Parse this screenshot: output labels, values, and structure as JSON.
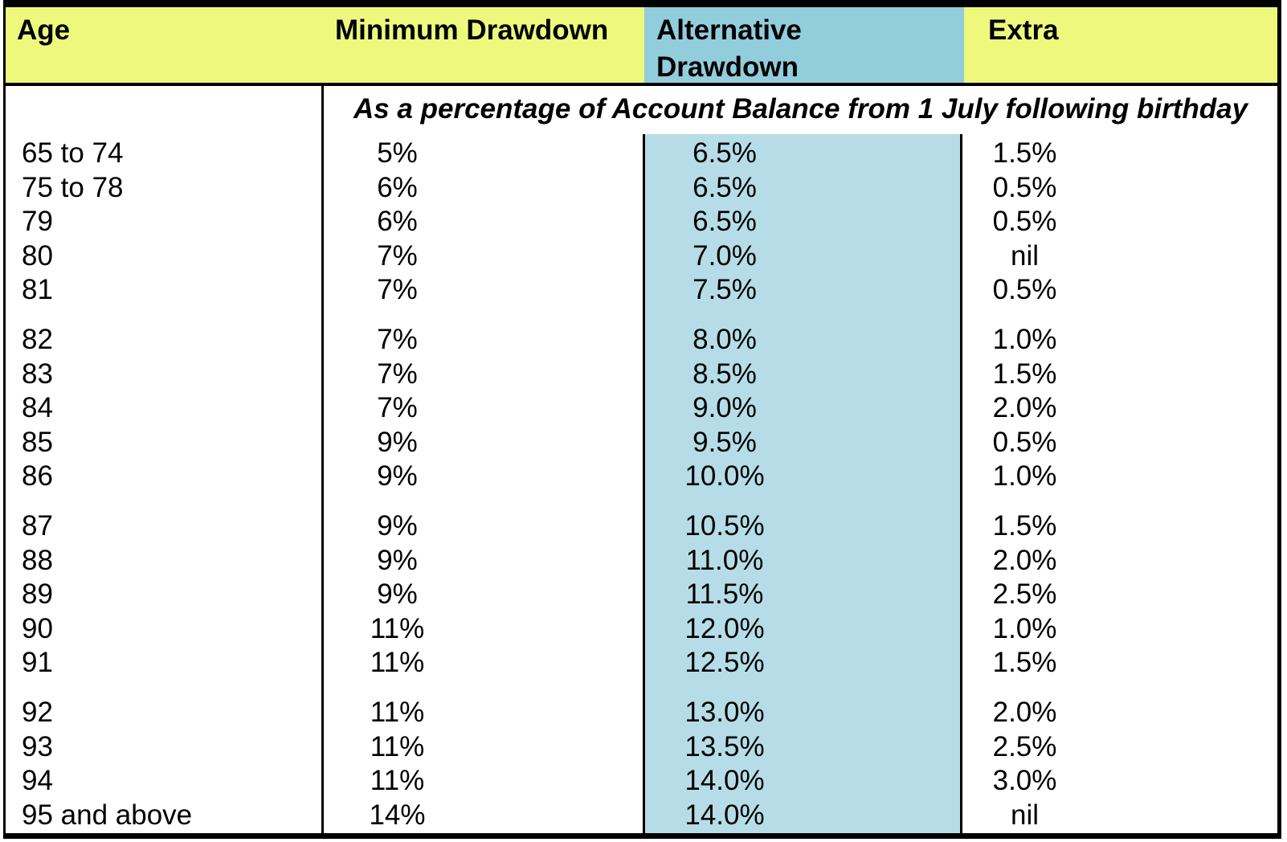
{
  "colors": {
    "header-yellow": "#EEF87D",
    "header-blue": "#92CDDC",
    "column-blue": "#B6DDE7",
    "border": "#000000",
    "text": "#000000"
  },
  "table": {
    "columns": [
      "Age",
      "Minimum Drawdown",
      "Alternative Drawdown",
      "Extra"
    ],
    "subheader": "As a percentage of Account Balance from 1 July following birthday",
    "rows": [
      {
        "age": "65 to 74",
        "min": "5%",
        "alt": "6.5%",
        "extra": "1.5%",
        "gap_before": false
      },
      {
        "age": "75 to 78",
        "min": "6%",
        "alt": "6.5%",
        "extra": "0.5%",
        "gap_before": false
      },
      {
        "age": "79",
        "min": "6%",
        "alt": "6.5%",
        "extra": "0.5%",
        "gap_before": false
      },
      {
        "age": "80",
        "min": "7%",
        "alt": "7.0%",
        "extra": "nil",
        "gap_before": false
      },
      {
        "age": "81",
        "min": "7%",
        "alt": "7.5%",
        "extra": "0.5%",
        "gap_before": false
      },
      {
        "age": "82",
        "min": "7%",
        "alt": "8.0%",
        "extra": "1.0%",
        "gap_before": true
      },
      {
        "age": "83",
        "min": "7%",
        "alt": "8.5%",
        "extra": "1.5%",
        "gap_before": false
      },
      {
        "age": "84",
        "min": "7%",
        "alt": "9.0%",
        "extra": "2.0%",
        "gap_before": false
      },
      {
        "age": "85",
        "min": "9%",
        "alt": "9.5%",
        "extra": "0.5%",
        "gap_before": false
      },
      {
        "age": "86",
        "min": "9%",
        "alt": "10.0%",
        "extra": "1.0%",
        "gap_before": false
      },
      {
        "age": "87",
        "min": "9%",
        "alt": "10.5%",
        "extra": "1.5%",
        "gap_before": true
      },
      {
        "age": "88",
        "min": "9%",
        "alt": "11.0%",
        "extra": "2.0%",
        "gap_before": false
      },
      {
        "age": "89",
        "min": "9%",
        "alt": "11.5%",
        "extra": "2.5%",
        "gap_before": false
      },
      {
        "age": "90",
        "min": "11%",
        "alt": "12.0%",
        "extra": "1.0%",
        "gap_before": false
      },
      {
        "age": "91",
        "min": "11%",
        "alt": "12.5%",
        "extra": "1.5%",
        "gap_before": false
      },
      {
        "age": "92",
        "min": "11%",
        "alt": "13.0%",
        "extra": "2.0%",
        "gap_before": true
      },
      {
        "age": "93",
        "min": "11%",
        "alt": "13.5%",
        "extra": "2.5%",
        "gap_before": false
      },
      {
        "age": "94",
        "min": "11%",
        "alt": "14.0%",
        "extra": "3.0%",
        "gap_before": false
      },
      {
        "age": "95 and above",
        "min": "14%",
        "alt": "14.0%",
        "extra": "nil",
        "gap_before": false
      }
    ]
  }
}
